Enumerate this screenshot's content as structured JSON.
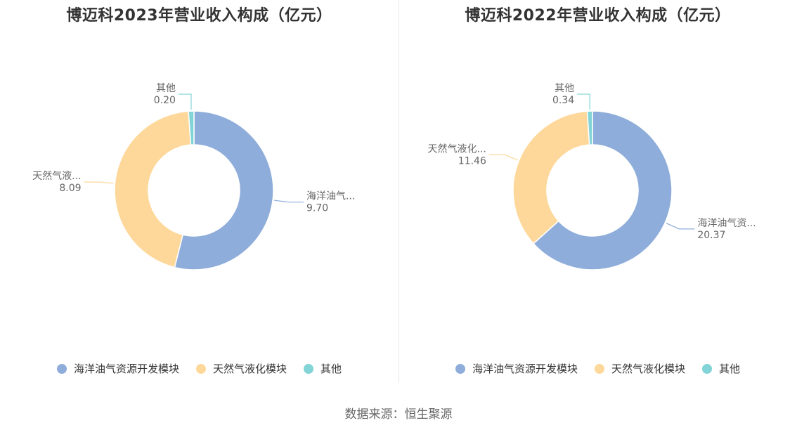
{
  "source": "数据来源：恒生聚源",
  "chart_data": [
    {
      "type": "pie",
      "title": "博迈科2023年营业收入构成（亿元）",
      "labels": [
        "海洋油气资源开发模块",
        "天然气液化模块",
        "其他"
      ],
      "short_labels": [
        "海洋油气...",
        "天然气液...",
        "其他"
      ],
      "values": [
        9.7,
        8.09,
        0.2
      ],
      "value_labels": [
        "9.70",
        "8.09",
        "0.20"
      ],
      "colors": [
        "#8fadda",
        "#fdd89a",
        "#82d4d6"
      ],
      "legend": "bottom"
    },
    {
      "type": "pie",
      "title": "博迈科2022年营业收入构成（亿元）",
      "labels": [
        "海洋油气资源开发模块",
        "天然气液化模块",
        "其他"
      ],
      "short_labels": [
        "海洋油气资...",
        "天然气液化...",
        "其他"
      ],
      "values": [
        20.37,
        11.46,
        0.34
      ],
      "value_labels": [
        "20.37",
        "11.46",
        "0.34"
      ],
      "colors": [
        "#8fadda",
        "#fdd89a",
        "#82d4d6"
      ],
      "legend": "bottom"
    }
  ]
}
